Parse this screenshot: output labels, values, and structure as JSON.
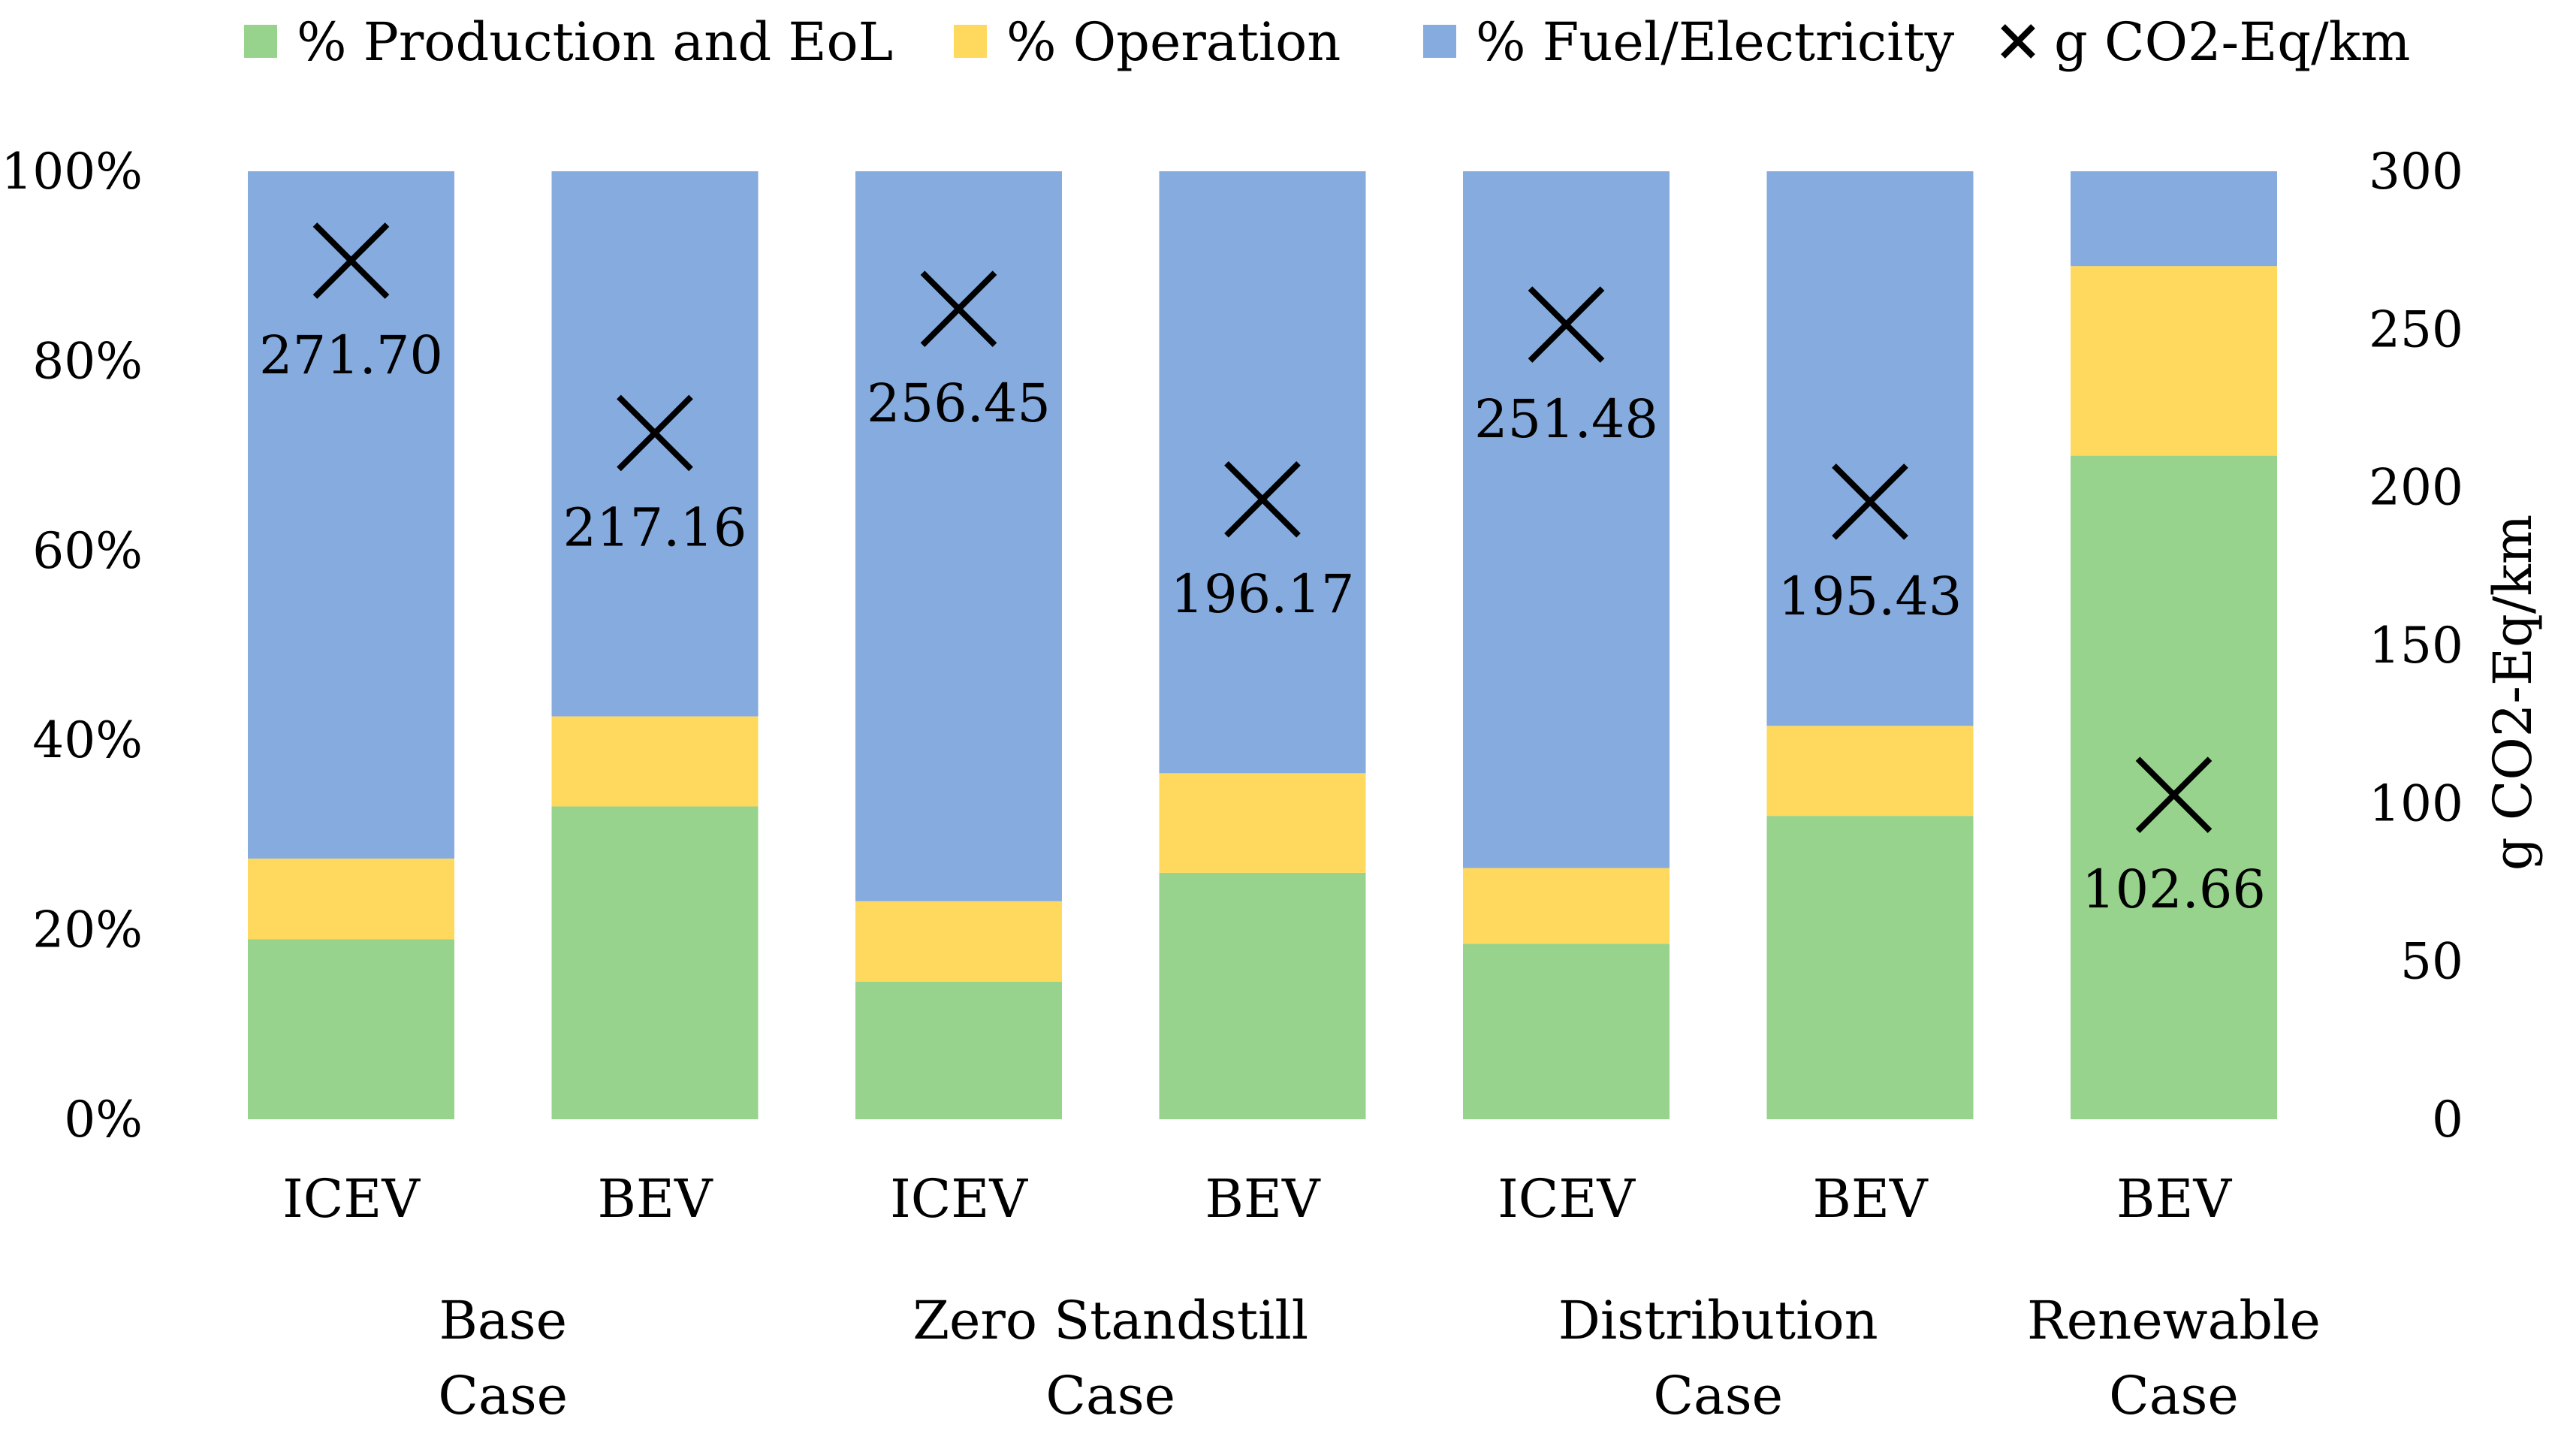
{
  "chart_data": {
    "type": "bar",
    "stacked": true,
    "percent_stacked": true,
    "bars": [
      {
        "category": "ICEV",
        "group": "Base Case"
      },
      {
        "category": "BEV",
        "group": "Base Case"
      },
      {
        "category": "ICEV",
        "group": "Zero Standstill Case"
      },
      {
        "category": "BEV",
        "group": "Zero Standstill Case"
      },
      {
        "category": "ICEV",
        "group": "Distribution Case"
      },
      {
        "category": "BEV",
        "group": "Distribution Case"
      },
      {
        "category": "BEV",
        "group": "Renewable Case"
      }
    ],
    "groups": [
      {
        "line1": "Base",
        "line2": "Case",
        "bars": [
          0,
          1
        ]
      },
      {
        "line1": "Zero Standstill",
        "line2": "Case",
        "bars": [
          2,
          3
        ]
      },
      {
        "line1": "Distribution",
        "line2": "Case",
        "bars": [
          4,
          5
        ]
      },
      {
        "line1": "Renewable",
        "line2": "Case",
        "bars": [
          6
        ]
      }
    ],
    "series": [
      {
        "name": "% Production and EoL",
        "color": "#97D38C",
        "values": [
          19,
          33,
          14.5,
          26,
          18.5,
          32,
          70
        ]
      },
      {
        "name": "% Operation",
        "color": "#FFD95E",
        "values": [
          8.5,
          9.5,
          8.5,
          10.5,
          8,
          9.5,
          20
        ]
      },
      {
        "name": "% Fuel/Electricity",
        "color": "#85ABDF",
        "values": [
          72.5,
          57.5,
          77,
          63.5,
          73.5,
          58.5,
          10
        ]
      }
    ],
    "secondary_series": {
      "name": "g CO2-Eq/km",
      "marker": "x",
      "values": [
        271.7,
        217.16,
        256.45,
        196.17,
        251.48,
        195.43,
        102.66
      ],
      "labels": [
        "271.70",
        "217.16",
        "256.45",
        "196.17",
        "251.48",
        "195.43",
        "102.66"
      ]
    },
    "y_left": {
      "ticks": [
        "0%",
        "20%",
        "40%",
        "60%",
        "80%",
        "100%"
      ],
      "ylim": [
        0,
        100
      ]
    },
    "y_right": {
      "label": "g CO2-Eq/km",
      "ticks": [
        "0",
        "50",
        "100",
        "150",
        "200",
        "250",
        "300"
      ],
      "ylim": [
        0,
        300
      ]
    },
    "legend": {
      "position": "top",
      "items": [
        {
          "label": "% Production and EoL",
          "kind": "square",
          "color": "#97D38C"
        },
        {
          "label": "% Operation",
          "kind": "square",
          "color": "#FFD95E"
        },
        {
          "label": "% Fuel/Electricity",
          "kind": "square",
          "color": "#85ABDF"
        },
        {
          "label": "g CO2-Eq/km",
          "kind": "x-marker",
          "color": "#000000"
        }
      ]
    }
  }
}
